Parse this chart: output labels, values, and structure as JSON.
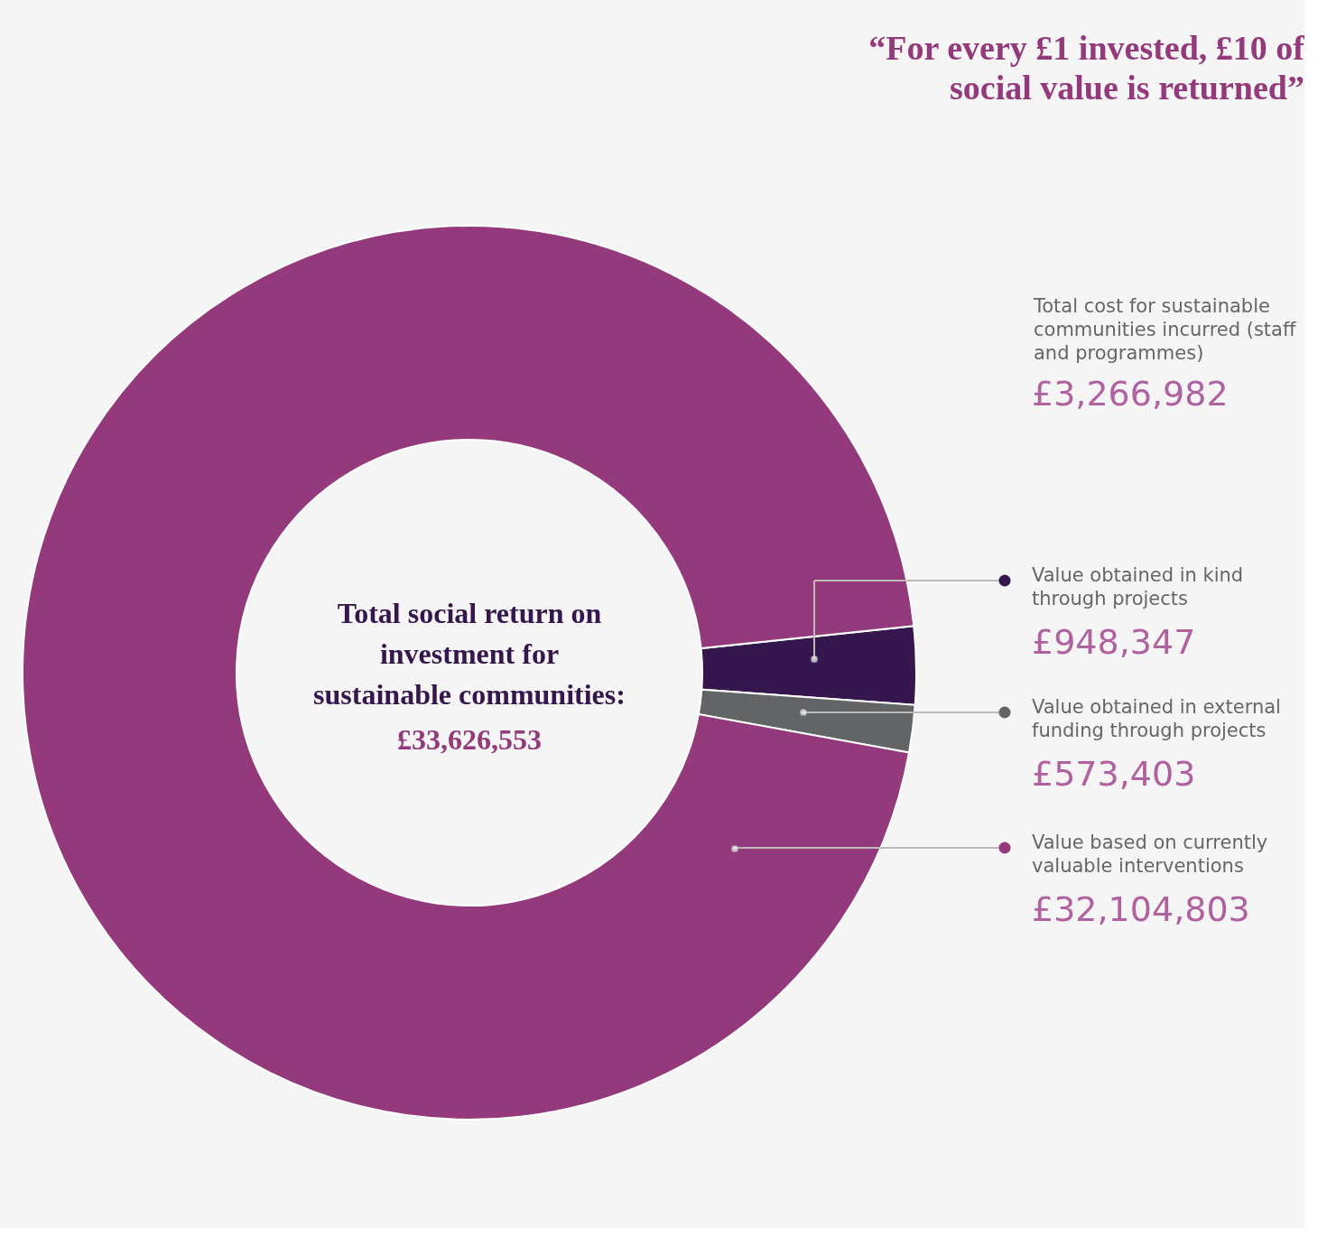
{
  "chart_data": {
    "type": "donut",
    "title": "“For every £1 invested, £10 of social value is returned”",
    "categories": [
      "Value obtained in kind through projects",
      "Value obtained in external funding through projects",
      "Value based on currently valuable interventions"
    ],
    "values": [
      948347,
      573403,
      32104803
    ],
    "colors": [
      "#36174d",
      "#636466",
      "#93397c"
    ],
    "value_labels": [
      "£948,347",
      "£573,403",
      "£32,104,803"
    ],
    "legend": "right",
    "annotations": [
      "Total social return on investment for sustainable communities:",
      "£33,626,553",
      "Total cost for sustainable communities incurred (staff and programmes)",
      "£3,266,982"
    ]
  }
}
